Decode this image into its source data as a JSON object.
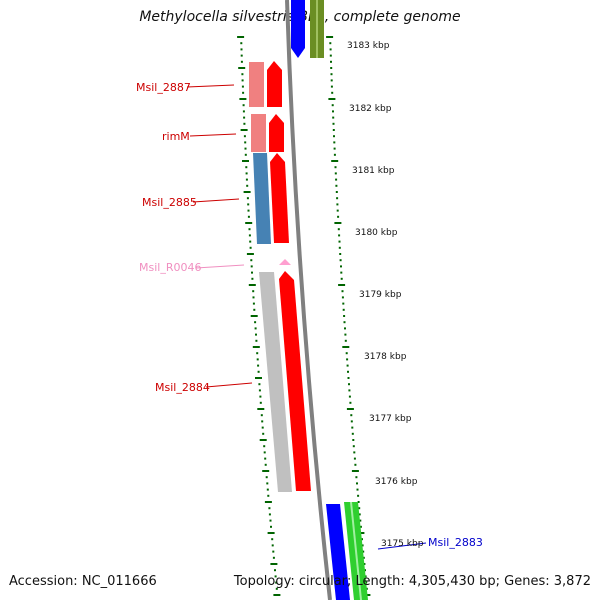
{
  "title": "Methylocella silvestris BL2, complete genome",
  "accession": "Accession: NC_011666",
  "summary": "Topology: circular; Length: 4,305,430 bp; Genes: 3,872",
  "colors": {
    "backbone": "#808080",
    "cds": "#ff0000",
    "trna": "#ff9fd0",
    "forward_strand": "#0000ff",
    "reverse_neighbor": "#2fcf2f",
    "olive": "#6b8e23",
    "cog_pink": "#f08080",
    "cog_blue": "#4682b4",
    "cog_gray": "#c0c0c0",
    "tick": "#006400"
  },
  "ticks": [
    "3183 kbp",
    "3182 kbp",
    "3181 kbp",
    "3180 kbp",
    "3179 kbp",
    "3178 kbp",
    "3177 kbp",
    "3176 kbp",
    "3175 kbp"
  ],
  "genes": [
    {
      "name": "Msil_2887",
      "color": "#cc0000"
    },
    {
      "name": "rimM",
      "color": "#cc0000"
    },
    {
      "name": "Msil_2885",
      "color": "#cc0000"
    },
    {
      "name": "Msil_R0046",
      "color": "#f08fc0"
    },
    {
      "name": "Msil_2884",
      "color": "#cc0000"
    },
    {
      "name": "Msil_2883",
      "color": "#0000cc"
    }
  ]
}
